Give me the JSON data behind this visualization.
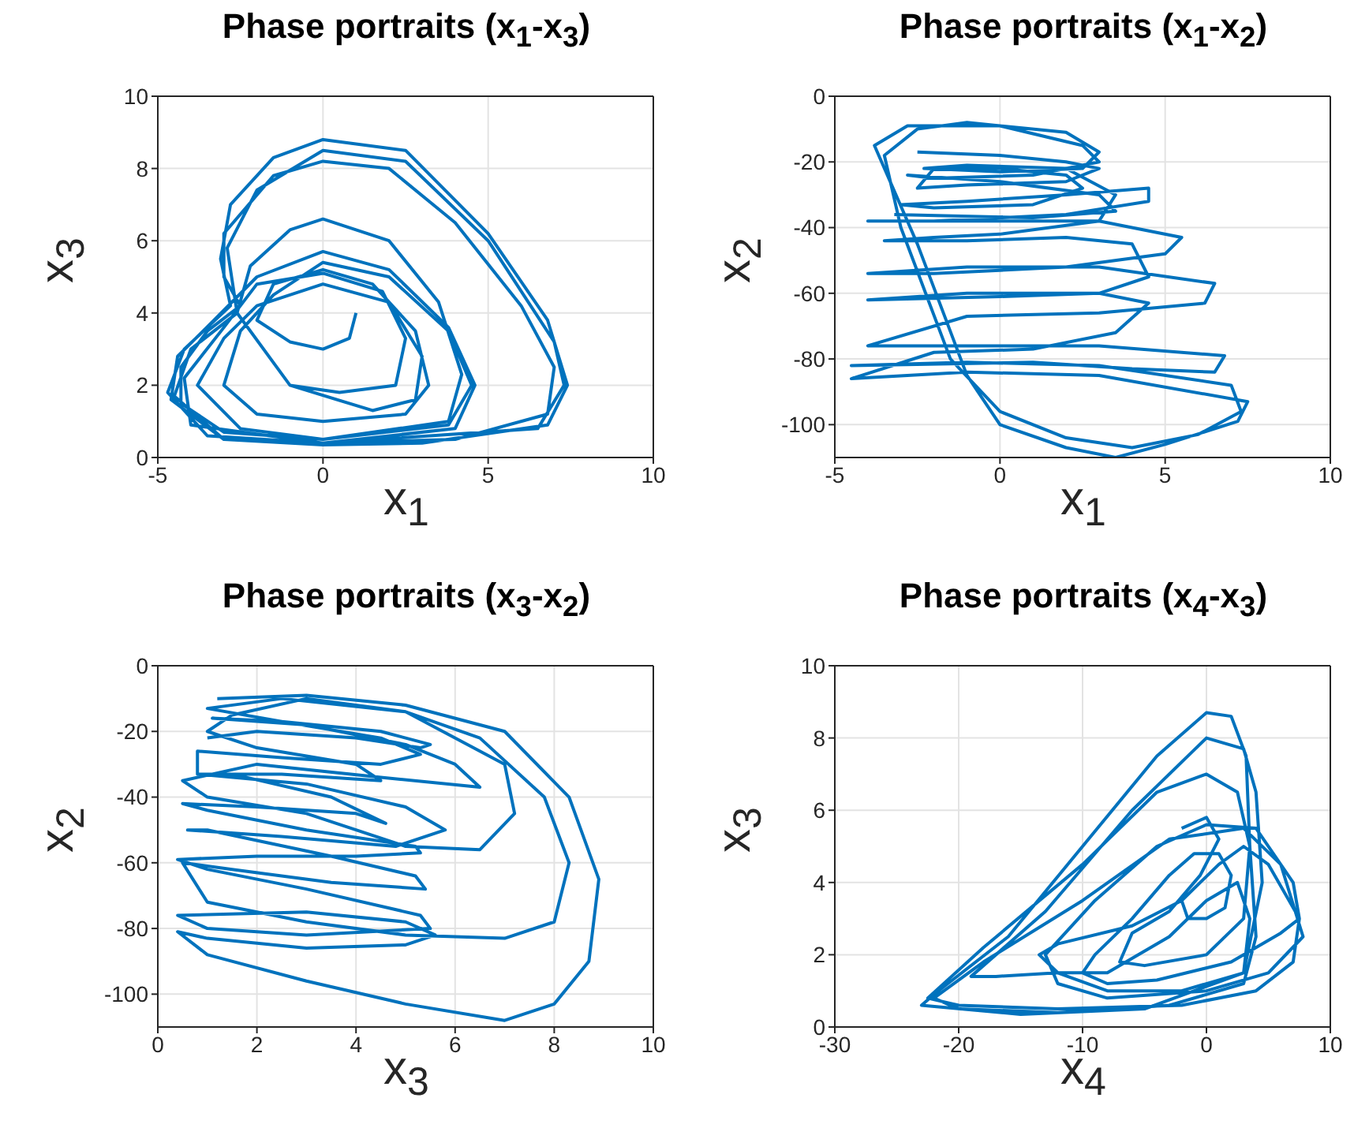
{
  "chart_data": [
    {
      "type": "line",
      "title": "Phase portraits (x$_{1}$-x$_{3}$)",
      "xlabel": "x$_{1}$",
      "ylabel": "x$_{3}$",
      "xlim": [
        -5,
        10
      ],
      "xticks": [
        -5,
        0,
        5,
        10
      ],
      "ylim": [
        0,
        10
      ],
      "yticks": [
        0,
        2,
        4,
        6,
        8,
        10
      ],
      "grid": true,
      "color": "#0072bd",
      "x": [
        1,
        0.8,
        0,
        -1,
        -2,
        -1.5,
        0,
        1.5,
        2.8,
        3.2,
        2.5,
        0,
        -2,
        -3,
        -2.5,
        -1.5,
        0,
        2,
        3.8,
        4.5,
        3.8,
        0,
        -3,
        -4.3,
        -4.3,
        -3.5,
        -2.5,
        -3,
        -3,
        -1.5,
        0,
        2,
        4,
        6,
        7,
        6.8,
        4,
        0,
        -3,
        -4.6,
        -4.4,
        -3.3,
        -2,
        0,
        2,
        3.8,
        4.6,
        4,
        0,
        -3.5,
        -4.7,
        -4.2,
        -2.8,
        -3.1,
        -2.8,
        -1.5,
        0,
        2.5,
        5,
        6.8,
        7.4,
        6.8,
        3,
        0,
        -3,
        -4.5,
        -4,
        -2.6,
        -2.2,
        -1,
        0,
        2,
        3.5,
        4.2,
        3.8,
        0,
        -2.5,
        -3.8,
        -3,
        -2,
        0,
        2,
        3,
        2.8,
        1.5,
        -1,
        -2.6,
        -2.9,
        -2,
        0,
        2.5,
        5,
        7,
        7.3,
        6.5,
        0,
        -4,
        -4.2,
        -3,
        -2,
        0,
        1.8,
        2.5,
        2.2,
        0.5,
        -1
      ],
      "values": [
        4,
        3.3,
        3,
        3.2,
        3.8,
        4.8,
        5.2,
        4.8,
        3.5,
        2,
        1.2,
        1,
        1.2,
        2,
        3.5,
        4.5,
        5.4,
        5,
        3.5,
        2,
        0.9,
        0.5,
        0.7,
        1.5,
        2.5,
        3.5,
        4.2,
        5,
        6.2,
        7.8,
        8.2,
        8,
        6.5,
        4.2,
        2.5,
        1.2,
        0.5,
        0.4,
        0.5,
        1.6,
        2.8,
        3.8,
        5,
        5.7,
        5.2,
        3.6,
        2,
        0.8,
        0.4,
        0.6,
        1.8,
        3,
        4.2,
        5.5,
        7,
        8.3,
        8.8,
        8.5,
        6.2,
        3.8,
        2,
        0.9,
        0.4,
        0.35,
        0.5,
        1.7,
        3,
        4,
        5.3,
        6.3,
        6.6,
        6,
        4.3,
        2.3,
        1,
        0.5,
        0.8,
        2,
        3.3,
        4.2,
        4.8,
        4.3,
        2.8,
        1.6,
        1.3,
        2,
        4,
        5.8,
        7.4,
        8.5,
        8.2,
        6,
        3.2,
        2,
        0.8,
        0.4,
        0.9,
        2.2,
        3.6,
        4.8,
        5.1,
        4.6,
        3.3,
        2,
        1.8,
        2
      ]
    },
    {
      "type": "line",
      "title": "Phase portraits (x$_{1}$-x$_{2}$)",
      "xlabel": "x$_{1}$",
      "ylabel": "x$_{2}$",
      "xlim": [
        -5,
        10
      ],
      "xticks": [
        -5,
        0,
        5,
        10
      ],
      "ylim": [
        -110,
        0
      ],
      "yticks": [
        -100,
        -80,
        -60,
        -40,
        -20,
        0
      ],
      "grid": true,
      "color": "#0072bd",
      "x": [
        -2.5,
        0,
        2,
        3,
        2,
        -1,
        -2.5,
        -2,
        0,
        2,
        2.5,
        1,
        -2,
        -3,
        -1,
        2,
        4.5,
        4.5,
        2,
        -2,
        -4,
        -1,
        3,
        5.5,
        5,
        2,
        -2,
        -4,
        -1,
        3,
        6.5,
        6.2,
        3,
        -1,
        -4,
        -1,
        3,
        6.8,
        6.5,
        4,
        1,
        -4.5,
        -1,
        3,
        7,
        7.3,
        6,
        4,
        2,
        0,
        -1.5,
        -3,
        -3.5,
        -2.5,
        -1,
        2,
        3,
        2.5,
        0,
        -2.3,
        -1,
        2,
        3.5,
        3,
        0,
        -2,
        -3.5,
        -1,
        2,
        4,
        4.5,
        3,
        0,
        -4,
        -1,
        3,
        4.5,
        3.5,
        1,
        -2,
        -4.5,
        -1,
        3,
        7.5,
        7.2,
        5,
        3.5,
        2,
        0,
        -1,
        -2.5,
        -3.8,
        -2.8,
        0,
        2.5,
        3,
        1,
        -2,
        -2.8,
        0,
        3,
        3.5,
        1,
        -3.2
      ],
      "values": [
        -17,
        -18,
        -20,
        -22,
        -26,
        -27,
        -28,
        -22,
        -22,
        -24,
        -28,
        -33,
        -34,
        -33,
        -32,
        -30,
        -28,
        -32,
        -36,
        -38,
        -38,
        -38,
        -38,
        -43,
        -48,
        -52,
        -54,
        -54,
        -52,
        -52,
        -57,
        -63,
        -66,
        -67,
        -76,
        -76,
        -76,
        -79,
        -84,
        -83,
        -81,
        -82,
        -81,
        -82,
        -88,
        -96,
        -103,
        -107,
        -104,
        -96,
        -80,
        -40,
        -18,
        -10,
        -8,
        -11,
        -17,
        -22,
        -23,
        -22,
        -21,
        -22,
        -30,
        -38,
        -42,
        -43,
        -44,
        -44,
        -43,
        -45,
        -55,
        -60,
        -61,
        -62,
        -60,
        -60,
        -63,
        -72,
        -77,
        -78,
        -86,
        -84,
        -85,
        -93,
        -99,
        -106,
        -110,
        -107,
        -100,
        -85,
        -45,
        -15,
        -9,
        -9,
        -15,
        -20,
        -24,
        -25,
        -24,
        -26,
        -30,
        -35,
        -37,
        -36
      ]
    },
    {
      "type": "line",
      "title": "Phase portraits (x$_{3}$-x$_{2}$)",
      "xlabel": "x$_{3}$",
      "ylabel": "x$_{2}$",
      "xlim": [
        0,
        10
      ],
      "xticks": [
        0,
        2,
        4,
        6,
        8,
        10
      ],
      "ylim": [
        -110,
        0
      ],
      "yticks": [
        -100,
        -80,
        -60,
        -40,
        -20,
        0
      ],
      "grid": true,
      "color": "#0072bd",
      "x": [
        1.2,
        3,
        5,
        7,
        8.3,
        8.9,
        8.7,
        8,
        7,
        5,
        3,
        1,
        0.4,
        1,
        3,
        5,
        5.6,
        5,
        3,
        0.4,
        1,
        3,
        5.5,
        5.3,
        3,
        1,
        0.4,
        2,
        4,
        5.3,
        5.2,
        3,
        1,
        0.5,
        2,
        4,
        4.6,
        3.5,
        1.5,
        0.8,
        2.5,
        4.5,
        4,
        2,
        1,
        1.5,
        3,
        5,
        6.5,
        7.8,
        8.3,
        8,
        7,
        5,
        3,
        1,
        0.5,
        1.5,
        3.5,
        5.4,
        5.2,
        3.5,
        1,
        0.6,
        2.5,
        4.8,
        5.8,
        5,
        3,
        0.8,
        0.8,
        2.5,
        4.5,
        5.3,
        4.5,
        2.5,
        1,
        2.5,
        5,
        7,
        7.2,
        6.5,
        5,
        4,
        3,
        1,
        0.5,
        2,
        4.5,
        6.5,
        6,
        5,
        3,
        1.1,
        2.5,
        4.5,
        5.5,
        5.3,
        4,
        2,
        1
      ],
      "values": [
        -10,
        -9,
        -12,
        -20,
        -40,
        -65,
        -90,
        -103,
        -108,
        -103,
        -96,
        -88,
        -81,
        -83,
        -86,
        -85,
        -82,
        -78,
        -75,
        -76,
        -80,
        -82,
        -80,
        -76,
        -68,
        -62,
        -59,
        -58,
        -58,
        -57,
        -55,
        -50,
        -44,
        -42,
        -43,
        -45,
        -48,
        -40,
        -33,
        -33,
        -33,
        -35,
        -30,
        -25,
        -20,
        -15,
        -10,
        -14,
        -22,
        -40,
        -60,
        -78,
        -83,
        -82,
        -78,
        -72,
        -60,
        -62,
        -66,
        -68,
        -64,
        -58,
        -50,
        -50,
        -52,
        -55,
        -50,
        -43,
        -36,
        -33,
        -26,
        -28,
        -30,
        -27,
        -22,
        -17,
        -13,
        -10,
        -14,
        -30,
        -45,
        -56,
        -55,
        -50,
        -45,
        -40,
        -35,
        -30,
        -34,
        -37,
        -30,
        -24,
        -18,
        -16,
        -17,
        -20,
        -24,
        -25,
        -22,
        -20,
        -22
      ]
    },
    {
      "type": "line",
      "title": "Phase portraits (x$_{4}$-x$_{3}$)",
      "xlabel": "x$_{4}$",
      "ylabel": "x$_{3}$",
      "xlim": [
        -30,
        10
      ],
      "xticks": [
        -30,
        -20,
        -10,
        0,
        10
      ],
      "ylim": [
        0,
        10
      ],
      "yticks": [
        0,
        2,
        4,
        6,
        8,
        10
      ],
      "grid": true,
      "color": "#0072bd",
      "x": [
        -2,
        -1.5,
        0,
        1.5,
        2,
        1,
        -1,
        -3,
        -6,
        -9,
        -10,
        -8,
        -4,
        2,
        6,
        7.5,
        7,
        4,
        0,
        -4,
        -9,
        -13,
        -12,
        -8,
        0,
        5,
        7.8,
        6,
        3,
        -3,
        -10,
        -18,
        -22,
        -20,
        -12,
        -3,
        3,
        4,
        3.5,
        3.2,
        2,
        0,
        -4,
        -10,
        -16,
        -22,
        -23,
        -15,
        -5,
        3,
        4.5,
        4,
        3,
        0,
        -6,
        -13,
        -19,
        -17,
        -12,
        -8,
        -3,
        0,
        2.5,
        3.5,
        3,
        -2,
        -8,
        -12,
        -13.5,
        -12,
        -6,
        -2,
        1,
        3,
        5,
        7.5,
        7,
        4,
        -2,
        -12,
        -20,
        -22.5,
        -18,
        -10,
        -4,
        0,
        2.5,
        3.5,
        3,
        0,
        -5,
        -7,
        -6,
        -3,
        -0.5,
        1,
        0,
        -2
      ],
      "values": [
        3.5,
        3,
        3,
        3.3,
        4.2,
        4.8,
        4.8,
        4.2,
        3,
        2,
        1.5,
        1.2,
        1.3,
        1.8,
        2.6,
        3,
        4,
        5.5,
        5.6,
        5,
        3.5,
        2,
        1.2,
        0.8,
        1,
        1.5,
        2.5,
        4.5,
        5.5,
        5.2,
        3.5,
        1.8,
        0.8,
        0.5,
        0.4,
        0.6,
        1.2,
        2.5,
        5,
        7.5,
        8.6,
        8.7,
        7.5,
        5,
        2.5,
        0.9,
        0.6,
        0.35,
        0.5,
        1.5,
        4,
        6.5,
        7.7,
        8,
        6,
        3.2,
        1.4,
        1.4,
        1.5,
        1.5,
        2.5,
        3.5,
        4,
        3,
        1.5,
        1,
        1,
        1.5,
        2,
        2.3,
        2.8,
        3.5,
        4.5,
        5,
        4.5,
        3,
        1.8,
        1,
        0.6,
        0.5,
        0.6,
        0.8,
        2.2,
        4.5,
        6.5,
        7,
        6.5,
        5,
        3,
        2,
        1.7,
        1.8,
        2.6,
        3.2,
        4.2,
        5.2,
        5.8,
        5.5
      ]
    }
  ]
}
